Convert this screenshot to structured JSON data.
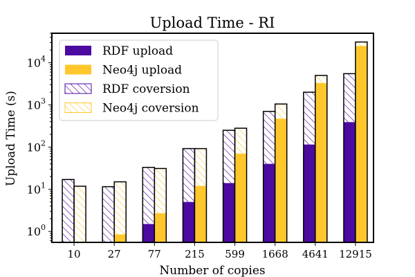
{
  "chart_data": {
    "type": "bar",
    "title": "Upload Time - RI",
    "xlabel": "Number of copies",
    "ylabel": "Upload Time (s)",
    "yscale": "log",
    "ylim": [
      0.55,
      50000
    ],
    "yticks": [
      {
        "value": 1,
        "base": "10",
        "exp": "0"
      },
      {
        "value": 10,
        "base": "10",
        "exp": "1"
      },
      {
        "value": 100,
        "base": "10",
        "exp": "2"
      },
      {
        "value": 1000,
        "base": "10",
        "exp": "3"
      },
      {
        "value": 10000,
        "base": "10",
        "exp": "4"
      }
    ],
    "categories": [
      "10",
      "27",
      "77",
      "215",
      "599",
      "1668",
      "4641",
      "12915"
    ],
    "series": [
      {
        "name": "RDF upload",
        "values": [
          0.5,
          0.5,
          1.5,
          5,
          14,
          40,
          115,
          390
        ]
      },
      {
        "name": "Neo4j upload",
        "values": [
          0.5,
          0.85,
          2.7,
          12,
          70,
          470,
          3300,
          25000
        ]
      },
      {
        "name": "RDF coversion",
        "values": [
          17,
          11.5,
          33,
          92,
          250,
          700,
          2000,
          5500
        ]
      },
      {
        "name": "Neo4j coversion",
        "values": [
          11.8,
          15,
          31,
          92,
          280,
          1050,
          5000,
          31000
        ]
      }
    ],
    "colors": {
      "rdf": "#4b0aa0",
      "neo4j": "#ffc72c",
      "edge": "#000000"
    },
    "legend_position": "upper-left"
  }
}
